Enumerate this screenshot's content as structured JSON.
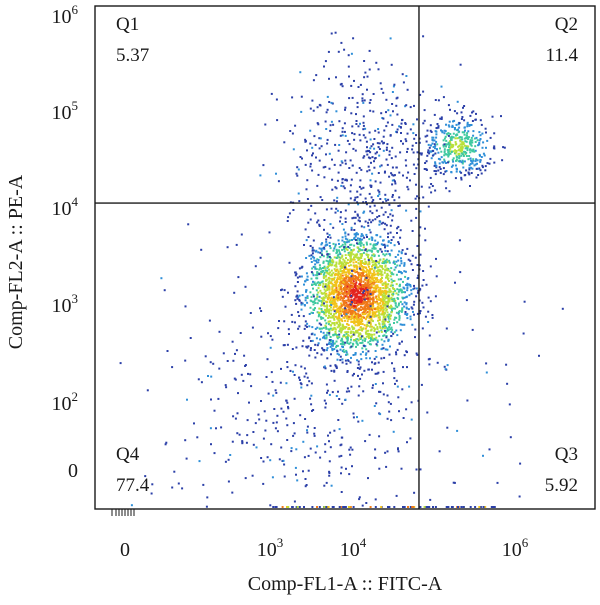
{
  "chart_data": {
    "type": "scatter",
    "title": "",
    "xlabel": "Comp-FL1-A :: FITC-A",
    "ylabel": "Comp-FL2-A :: PE-A",
    "x_scale": "biexponential (log above ~10^3, linear near 0)",
    "y_scale": "biexponential (log above ~10^2, linear near 0)",
    "x_ticks": [
      {
        "base": "0",
        "exp": ""
      },
      {
        "base": "10",
        "exp": "3"
      },
      {
        "base": "10",
        "exp": "4"
      },
      {
        "base": "10",
        "exp": "6"
      }
    ],
    "y_ticks": [
      {
        "base": "0",
        "exp": ""
      },
      {
        "base": "10",
        "exp": "2"
      },
      {
        "base": "10",
        "exp": "3"
      },
      {
        "base": "10",
        "exp": "4"
      },
      {
        "base": "10",
        "exp": "5"
      },
      {
        "base": "10",
        "exp": "6"
      }
    ],
    "gate": {
      "x_threshold_log10": 5.15,
      "y_threshold_log10": 4.1
    },
    "quadrants": [
      {
        "name": "Q1",
        "percent": "5.37",
        "position": "top-left"
      },
      {
        "name": "Q2",
        "percent": "11.4",
        "position": "top-right"
      },
      {
        "name": "Q3",
        "percent": "5.92",
        "position": "bottom-right"
      },
      {
        "name": "Q4",
        "percent": "77.4",
        "position": "bottom-left"
      }
    ],
    "populations": [
      {
        "name": "main cluster",
        "center_log10": [
          4.05,
          3.1
        ],
        "spread_log10": [
          0.45,
          0.3
        ],
        "density": "high"
      },
      {
        "name": "double-positive cluster",
        "center_log10": [
          5.85,
          4.6
        ],
        "spread_log10": [
          0.3,
          0.15
        ],
        "density": "medium"
      },
      {
        "name": "upper-left scatter",
        "center_log10": [
          4.2,
          4.5
        ],
        "spread_log10": [
          0.7,
          0.5
        ],
        "density": "low"
      },
      {
        "name": "low scatter",
        "center_log10": [
          3.4,
          2.0
        ],
        "spread_log10": [
          1.3,
          0.8
        ],
        "density": "low"
      }
    ],
    "colormap": [
      "#2b3fa8",
      "#2f8fd8",
      "#3fc9a0",
      "#b8e03a",
      "#f2c21a",
      "#f07a1a",
      "#e3231e"
    ],
    "grid": false,
    "legend": "none"
  }
}
